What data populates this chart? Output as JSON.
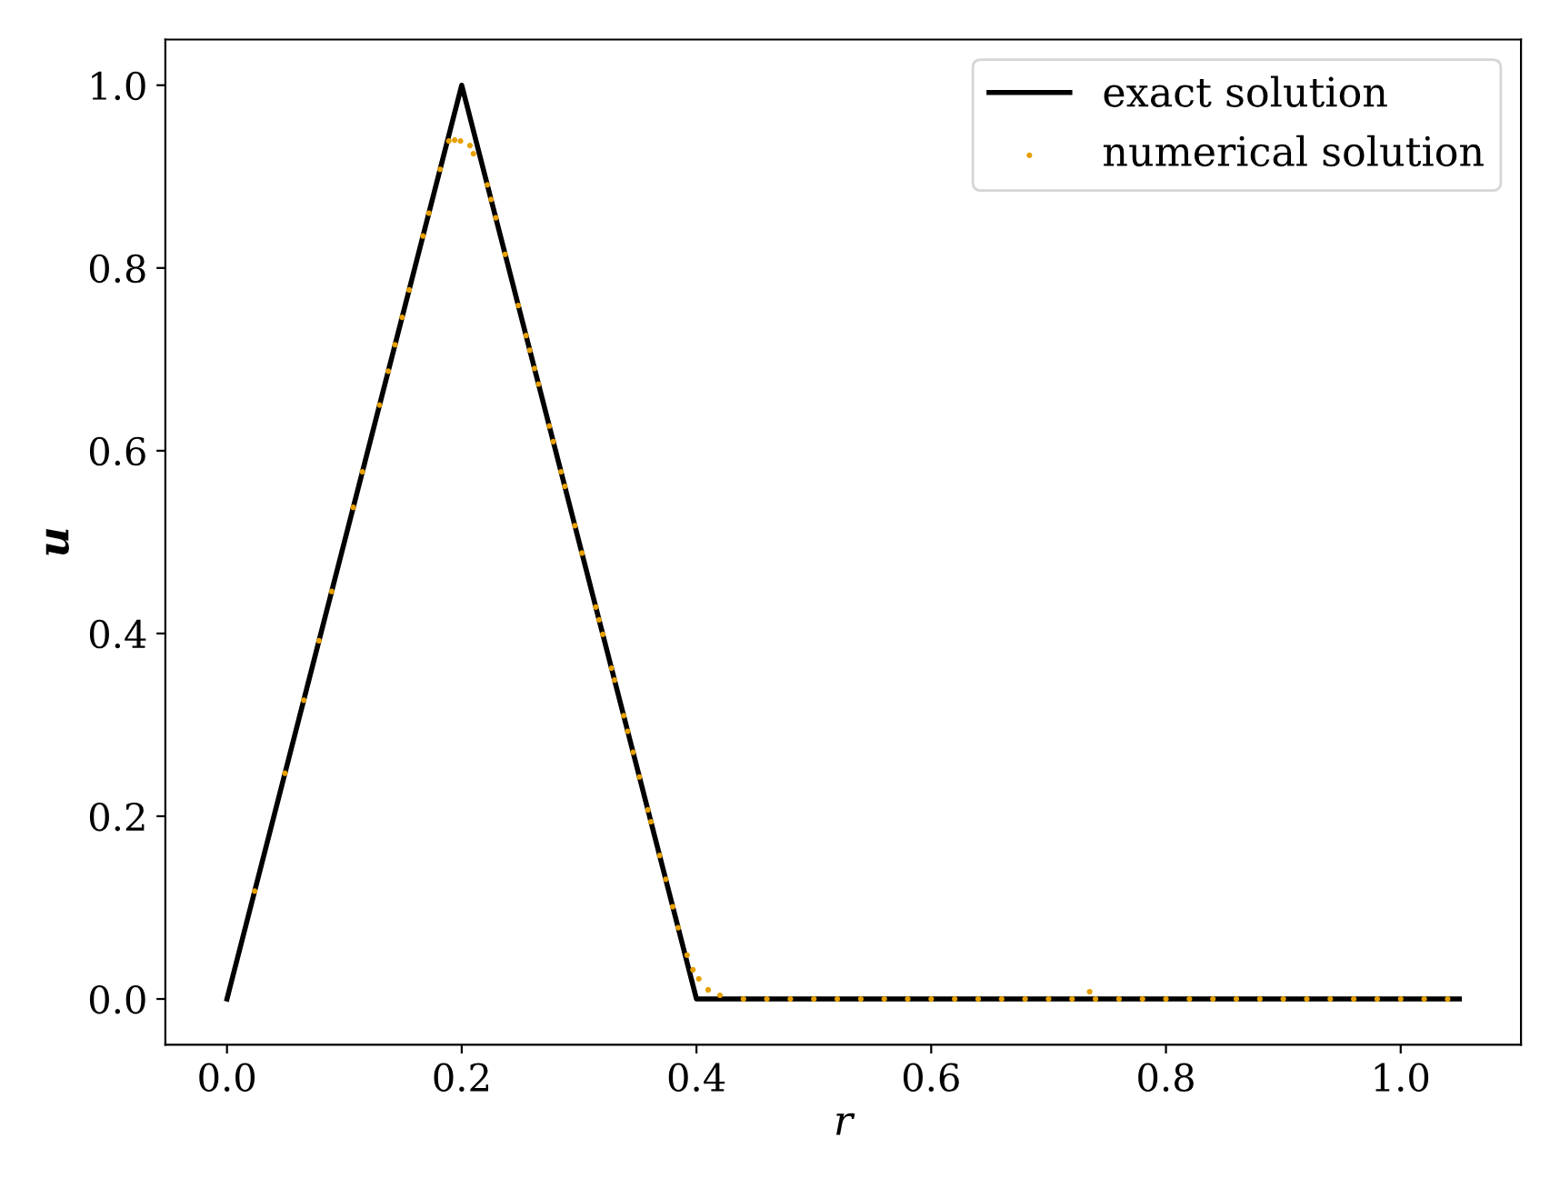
{
  "chart_data": {
    "type": "line",
    "xlabel": "r",
    "ylabel": "u",
    "xlim": [
      -0.0525,
      1.1025
    ],
    "ylim": [
      -0.05,
      1.05
    ],
    "xticks": [
      {
        "value": 0,
        "label": "0.0"
      },
      {
        "value": 0.2,
        "label": "0.2"
      },
      {
        "value": 0.4,
        "label": "0.4"
      },
      {
        "value": 0.6,
        "label": "0.6"
      },
      {
        "value": 0.8,
        "label": "0.8"
      },
      {
        "value": 1.0,
        "label": "1.0"
      }
    ],
    "yticks": [
      {
        "value": 0,
        "label": "0.0"
      },
      {
        "value": 0.2,
        "label": "0.2"
      },
      {
        "value": 0.4,
        "label": "0.4"
      },
      {
        "value": 0.6,
        "label": "0.6"
      },
      {
        "value": 0.8,
        "label": "0.8"
      },
      {
        "value": 1.0,
        "label": "1.0"
      }
    ],
    "grid": false,
    "legend": "top right",
    "series": [
      {
        "name": "exact solution",
        "type": "line",
        "color": "#000000",
        "line_style": "solid",
        "marker": "none",
        "x": [
          0,
          0.2,
          0.4,
          1.05
        ],
        "values": [
          0,
          1,
          0,
          0
        ]
      },
      {
        "name": "numerical solution",
        "type": "scatter",
        "color": "#e69f00",
        "marker": "circle",
        "x": [
          0.0236,
          0.0494,
          0.0654,
          0.0784,
          0.0892,
          0.1076,
          0.1154,
          0.13,
          0.1374,
          0.1432,
          0.1492,
          0.1552,
          0.167,
          0.172,
          0.1816,
          0.189,
          0.194,
          0.199,
          0.207,
          0.21,
          0.2218,
          0.225,
          0.229,
          0.237,
          0.2482,
          0.2548,
          0.258,
          0.262,
          0.2654,
          0.2746,
          0.278,
          0.2846,
          0.2878,
          0.2964,
          0.3024,
          0.3142,
          0.317,
          0.3202,
          0.3276,
          0.3302,
          0.338,
          0.3414,
          0.346,
          0.3514,
          0.3586,
          0.3612,
          0.3686,
          0.3738,
          0.3798,
          0.3844,
          0.392,
          0.397,
          0.402,
          0.41,
          0.42,
          0.44,
          0.46,
          0.48,
          0.5,
          0.52,
          0.54,
          0.56,
          0.58,
          0.6,
          0.62,
          0.64,
          0.66,
          0.68,
          0.7,
          0.72,
          0.735,
          0.74,
          0.76,
          0.78,
          0.8,
          0.82,
          0.84,
          0.86,
          0.88,
          0.9,
          0.92,
          0.94,
          0.96,
          0.98,
          1.0,
          1.02,
          1.04
        ],
        "values": [
          0.118,
          0.247,
          0.327,
          0.392,
          0.446,
          0.538,
          0.577,
          0.65,
          0.687,
          0.716,
          0.746,
          0.776,
          0.835,
          0.86,
          0.908,
          0.939,
          0.94,
          0.939,
          0.934,
          0.925,
          0.891,
          0.875,
          0.855,
          0.815,
          0.759,
          0.726,
          0.71,
          0.69,
          0.673,
          0.627,
          0.61,
          0.577,
          0.561,
          0.518,
          0.488,
          0.429,
          0.415,
          0.399,
          0.362,
          0.349,
          0.31,
          0.293,
          0.27,
          0.243,
          0.207,
          0.194,
          0.157,
          0.131,
          0.101,
          0.078,
          0.048,
          0.032,
          0.022,
          0.01,
          0.004,
          0,
          0,
          0,
          0,
          0,
          0,
          0,
          0,
          0,
          0,
          0,
          0,
          0,
          0,
          0,
          0.008,
          0,
          0,
          0,
          0,
          0,
          0,
          0,
          0,
          0,
          0,
          0,
          0,
          0,
          0,
          0,
          0
        ]
      }
    ]
  }
}
